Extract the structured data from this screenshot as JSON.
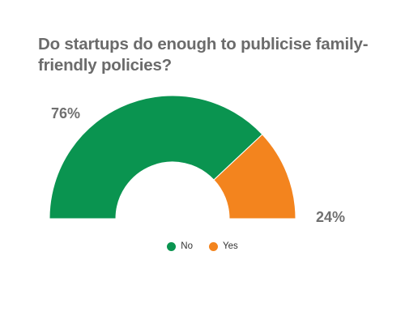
{
  "chart_data": {
    "type": "pie",
    "variant": "semi-donut",
    "title": "Do startups do enough to publicise family-friendly policies?",
    "categories": [
      "No",
      "Yes"
    ],
    "values": [
      76,
      24
    ],
    "labels": [
      "76%",
      "24%"
    ],
    "colors": [
      "#0a9450",
      "#f3841e"
    ],
    "legend_position": "bottom-center"
  }
}
